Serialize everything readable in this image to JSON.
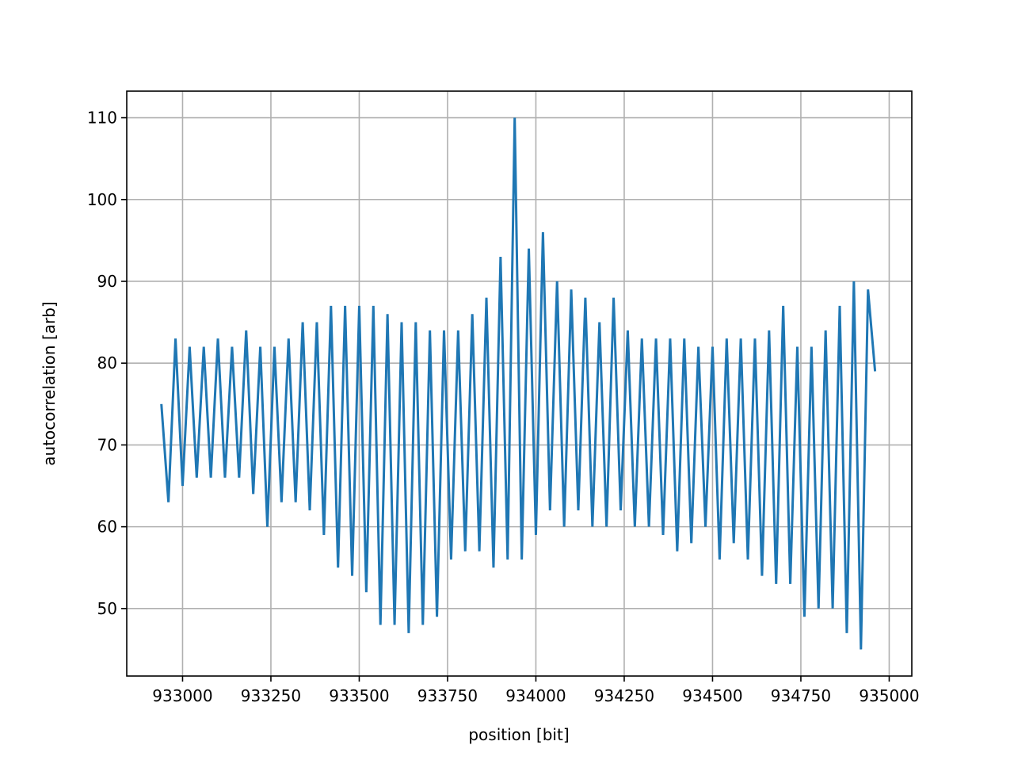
{
  "chart_data": {
    "type": "line",
    "xlabel": "position [bit]",
    "ylabel": "autocorrelation [arb]",
    "x": [
      932940,
      932960,
      932980,
      933000,
      933020,
      933040,
      933060,
      933080,
      933100,
      933120,
      933140,
      933160,
      933180,
      933200,
      933220,
      933240,
      933260,
      933280,
      933300,
      933320,
      933340,
      933360,
      933380,
      933400,
      933420,
      933440,
      933460,
      933480,
      933500,
      933520,
      933540,
      933560,
      933580,
      933600,
      933620,
      933640,
      933660,
      933680,
      933700,
      933720,
      933740,
      933760,
      933780,
      933800,
      933820,
      933840,
      933860,
      933880,
      933900,
      933920,
      933940,
      933960,
      933980,
      934000,
      934020,
      934040,
      934060,
      934080,
      934100,
      934120,
      934140,
      934160,
      934180,
      934200,
      934220,
      934240,
      934260,
      934280,
      934300,
      934320,
      934340,
      934360,
      934380,
      934400,
      934420,
      934440,
      934460,
      934480,
      934500,
      934520,
      934540,
      934560,
      934580,
      934600,
      934620,
      934640,
      934660,
      934680,
      934700,
      934720,
      934740,
      934760,
      934780,
      934800,
      934820,
      934840,
      934860,
      934880,
      934900,
      934920,
      934940,
      934960
    ],
    "series": [
      {
        "color": "#1f77b4",
        "values": [
          75,
          63,
          83,
          65,
          82,
          66,
          82,
          66,
          83,
          66,
          82,
          66,
          84,
          64,
          82,
          60,
          82,
          63,
          83,
          63,
          85,
          62,
          85,
          59,
          87,
          55,
          87,
          54,
          87,
          52,
          87,
          48,
          86,
          48,
          85,
          47,
          85,
          48,
          84,
          49,
          84,
          56,
          84,
          57,
          86,
          57,
          88,
          55,
          93,
          56,
          110,
          56,
          94,
          59,
          96,
          62,
          90,
          60,
          89,
          62,
          88,
          60,
          85,
          60,
          88,
          62,
          84,
          60,
          83,
          60,
          83,
          59,
          83,
          57,
          83,
          58,
          82,
          60,
          82,
          56,
          83,
          58,
          83,
          56,
          83,
          54,
          84,
          53,
          87,
          53,
          82,
          49,
          82,
          50,
          84,
          50,
          87,
          47,
          90,
          45,
          89,
          79
        ]
      }
    ],
    "xlim": [
      932842,
      935064
    ],
    "ylim": [
      41.75,
      113.25
    ],
    "xticks": [
      933000,
      933250,
      933500,
      933750,
      934000,
      934250,
      934500,
      934750,
      935000
    ],
    "yticks": [
      50,
      60,
      70,
      80,
      90,
      100,
      110
    ],
    "grid": true
  }
}
